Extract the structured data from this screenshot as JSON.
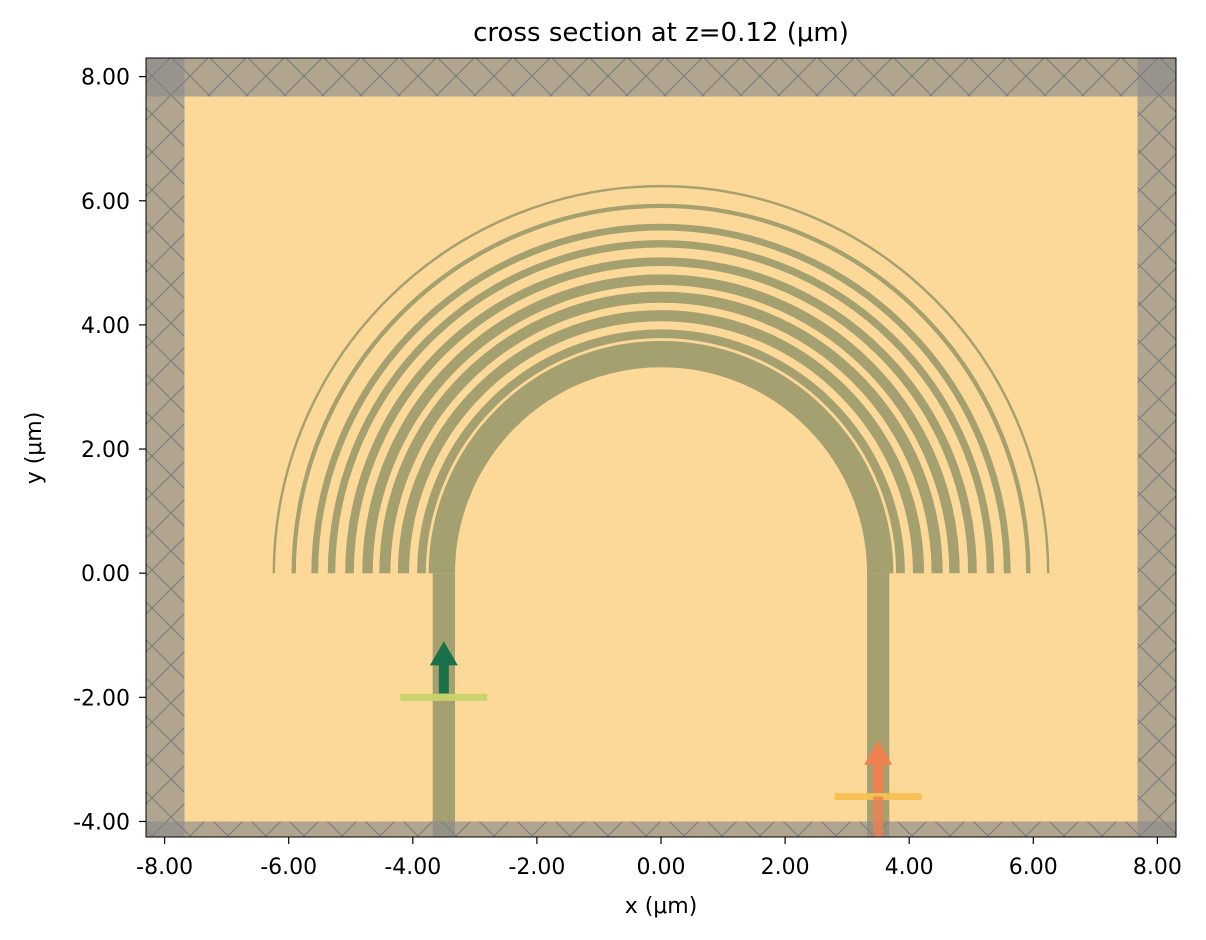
{
  "chart_data": {
    "type": "cross-section",
    "title": "cross section at z=0.12 (μm)",
    "xlabel": "x (μm)",
    "ylabel": "y (μm)",
    "xlim": [
      -8.3,
      8.3
    ],
    "ylim": [
      -4.25,
      8.3
    ],
    "xticks": [
      -8,
      -6,
      -4,
      -2,
      0,
      2,
      4,
      6,
      8
    ],
    "yticks": [
      -4,
      -2,
      0,
      2,
      4,
      6,
      8
    ],
    "xtick_labels": [
      "-8.00",
      "-6.00",
      "-4.00",
      "-2.00",
      "0.00",
      "2.00",
      "4.00",
      "6.00",
      "8.00"
    ],
    "ytick_labels": [
      "-4.00",
      "-2.00",
      "0.00",
      "2.00",
      "4.00",
      "6.00",
      "8.00"
    ],
    "grid": false,
    "colors": {
      "background": "#fdd999",
      "structure": "#a5a06f",
      "pml": "#8c8c8c",
      "source": "#1a7048",
      "source_plane": "#c7d46a",
      "monitor": "#f0804f",
      "monitor_plane": "#f5c152"
    },
    "simulation_box": {
      "x": [
        -8.3,
        8.3
      ],
      "y": [
        -4.25,
        8.3
      ]
    },
    "pml_thickness": 0.62,
    "waveguide": {
      "center_radius": 3.5,
      "width": 0.36,
      "straight_from_y": -4.25,
      "straight_to_y": 0
    },
    "rings": [
      {
        "radius": 3.68,
        "width": 0.13
      },
      {
        "radius": 3.86,
        "width": 0.14
      },
      {
        "radius": 4.15,
        "width": 0.18
      },
      {
        "radius": 4.45,
        "width": 0.18
      },
      {
        "radius": 4.73,
        "width": 0.17
      },
      {
        "radius": 5.02,
        "width": 0.14
      },
      {
        "radius": 5.31,
        "width": 0.12
      },
      {
        "radius": 5.58,
        "width": 0.11
      },
      {
        "radius": 5.92,
        "width": 0.07
      },
      {
        "radius": 6.24,
        "width": 0.04
      }
    ],
    "source": {
      "x": -3.5,
      "y": -2.0,
      "plane_x": [
        -4.2,
        -2.8
      ],
      "direction": "+y"
    },
    "monitor": {
      "x": 3.5,
      "y": -3.6,
      "plane_x": [
        2.8,
        4.2
      ],
      "direction": "+y"
    }
  }
}
